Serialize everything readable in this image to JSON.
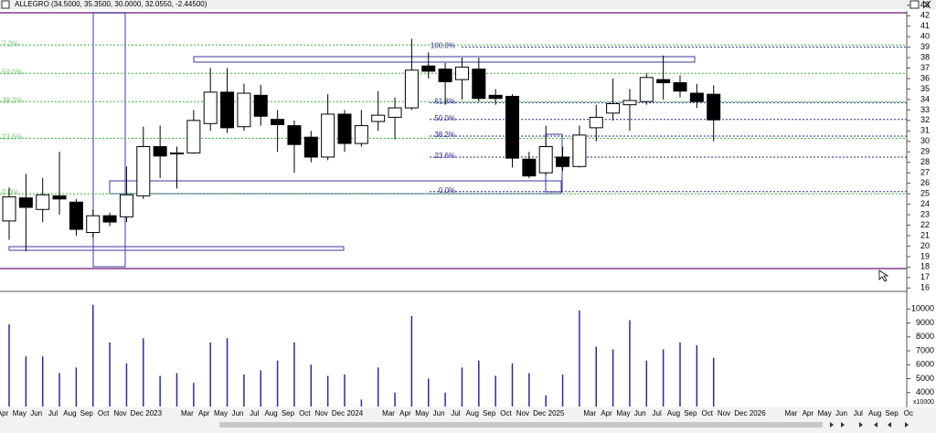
{
  "chart_data": {
    "type": "candlestick",
    "title": "ALLEGRO (34.5000, 35.3500, 30.0000, 32.0550, -2.44500)",
    "categories": [
      "Apr",
      "May",
      "Jun",
      "Jul",
      "Aug",
      "Sep",
      "Oct",
      "Nov",
      "Dec",
      "2023",
      null,
      "Mar",
      "Apr",
      "May",
      "Jun",
      "Jul",
      "Aug",
      "Sep",
      "Oct",
      "Nov",
      "Dec",
      "2024",
      null,
      "Mar",
      "Apr",
      "May",
      "Jun",
      "Jul",
      "Aug",
      "Sep",
      "Oct",
      "Nov",
      "Dec",
      "2025",
      null,
      "Mar",
      "Apr",
      "May",
      "Jun",
      "Jul",
      "Aug",
      "Sep",
      "Oct",
      "Nov",
      "Dec",
      "2026",
      null,
      "Mar",
      "Apr",
      "May",
      "Jun",
      "Jul",
      "Aug",
      "Sep",
      "Oc"
    ],
    "open": [
      22.4,
      24.6,
      23.5,
      24.8,
      24.2,
      21.3,
      22.9,
      22.8,
      24.8,
      29.5,
      28.8,
      28.9,
      31.7,
      34.7,
      31.4,
      34.4,
      32.1,
      31.5,
      30.4,
      28.5,
      32.6,
      29.8,
      31.9,
      32.3,
      33.2,
      37.2,
      36.9,
      35.9,
      36.9,
      34.4,
      34.3,
      28.3,
      27.0,
      28.5,
      27.6,
      31.3,
      32.7,
      33.5,
      33.8,
      35.9,
      35.6,
      34.6,
      34.5,
      null,
      null,
      null,
      null,
      null,
      null,
      null,
      null,
      null,
      null,
      null,
      null
    ],
    "high": [
      25.6,
      26.9,
      26.5,
      29.0,
      24.5,
      23.5,
      23.2,
      27.6,
      31.4,
      31.5,
      29.5,
      33.0,
      37.0,
      37.0,
      35.5,
      35.4,
      33.0,
      32.0,
      31.0,
      34.5,
      33.0,
      33.0,
      34.8,
      34.2,
      39.8,
      38.5,
      37.5,
      38.0,
      38.0,
      35.0,
      34.5,
      29.0,
      31.5,
      29.5,
      31.5,
      33.5,
      36.0,
      35.0,
      36.5,
      38.2,
      36.3,
      35.5,
      35.35,
      null,
      null,
      null,
      null,
      null,
      null,
      null,
      null,
      null,
      null,
      null,
      null
    ],
    "low": [
      20.6,
      19.5,
      22.3,
      23.0,
      21.0,
      20.8,
      21.9,
      22.3,
      24.5,
      26.5,
      25.5,
      28.8,
      31.0,
      30.8,
      31.0,
      31.5,
      29.0,
      27.0,
      28.0,
      28.2,
      29.0,
      29.5,
      31.0,
      30.2,
      33.0,
      36.0,
      33.5,
      34.0,
      33.8,
      33.5,
      27.5,
      26.5,
      26.8,
      27.2,
      27.5,
      30.0,
      32.0,
      31.0,
      33.5,
      34.0,
      34.2,
      33.2,
      30.0,
      null,
      null,
      null,
      null,
      null,
      null,
      null,
      null,
      null,
      null,
      null,
      null
    ],
    "close": [
      24.7,
      23.7,
      24.9,
      24.5,
      21.6,
      22.9,
      22.3,
      24.9,
      29.5,
      28.6,
      28.9,
      32.0,
      34.7,
      31.3,
      34.6,
      32.4,
      31.6,
      29.7,
      28.5,
      32.6,
      29.8,
      31.5,
      32.5,
      33.2,
      36.8,
      36.7,
      35.7,
      37.1,
      34.1,
      34.1,
      28.4,
      26.7,
      29.5,
      27.6,
      30.6,
      32.3,
      33.6,
      33.9,
      36.1,
      35.6,
      34.8,
      33.8,
      32.055,
      null,
      null,
      null,
      null,
      null,
      null,
      null,
      null,
      null,
      null,
      null,
      null
    ],
    "volume": [
      8900,
      6600,
      6600,
      5400,
      5800,
      10300,
      7600,
      6100,
      7900,
      5200,
      5400,
      4700,
      7600,
      7900,
      5300,
      5600,
      6300,
      7600,
      6000,
      5200,
      5300,
      3500,
      5800,
      4000,
      9500,
      5000,
      4000,
      5800,
      6300,
      5200,
      6100,
      5400,
      3800,
      5300,
      9900,
      7300,
      7100,
      9200,
      6300,
      7100,
      7600,
      7400,
      6500,
      null,
      null,
      null,
      null,
      null,
      null,
      null,
      null,
      null,
      null,
      null,
      null
    ],
    "up_color": "#ffffff",
    "down_color": "#000000",
    "volume_color": "#2a2aa0",
    "ylim": [
      15.5,
      43.5
    ],
    "yticks": [
      16,
      17,
      18,
      19,
      20,
      21,
      22,
      23,
      24,
      25,
      26,
      27,
      28,
      29,
      30,
      31,
      32,
      33,
      34,
      35,
      36,
      37,
      38,
      39,
      40,
      41,
      42,
      43
    ],
    "volume_ylim": [
      3000,
      11200
    ],
    "volume_ticks": [
      4000,
      5000,
      6000,
      7000,
      8000,
      9000,
      10000
    ],
    "volume_unit_label": "x10000",
    "fibonacci": [
      {
        "label": "100.0%",
        "value": 39
      },
      {
        "label": "61.8%",
        "value": 33.7
      },
      {
        "label": "50.0%",
        "value": 32.1
      },
      {
        "label": "38.2%",
        "value": 30.5
      },
      {
        "label": "23.6%",
        "value": 28.5
      },
      {
        "label": "0.0%",
        "value": 25.2
      }
    ],
    "left_levels": [
      {
        "label": "7.2%",
        "value": 39.2
      },
      {
        "label": "50.0%",
        "value": 36.5
      },
      {
        "label": "38.2%",
        "value": 33.8
      },
      {
        "label": "23.6%",
        "value": 30.3
      },
      {
        "label": "0.0%",
        "value": 25.0
      }
    ],
    "grid": false
  }
}
